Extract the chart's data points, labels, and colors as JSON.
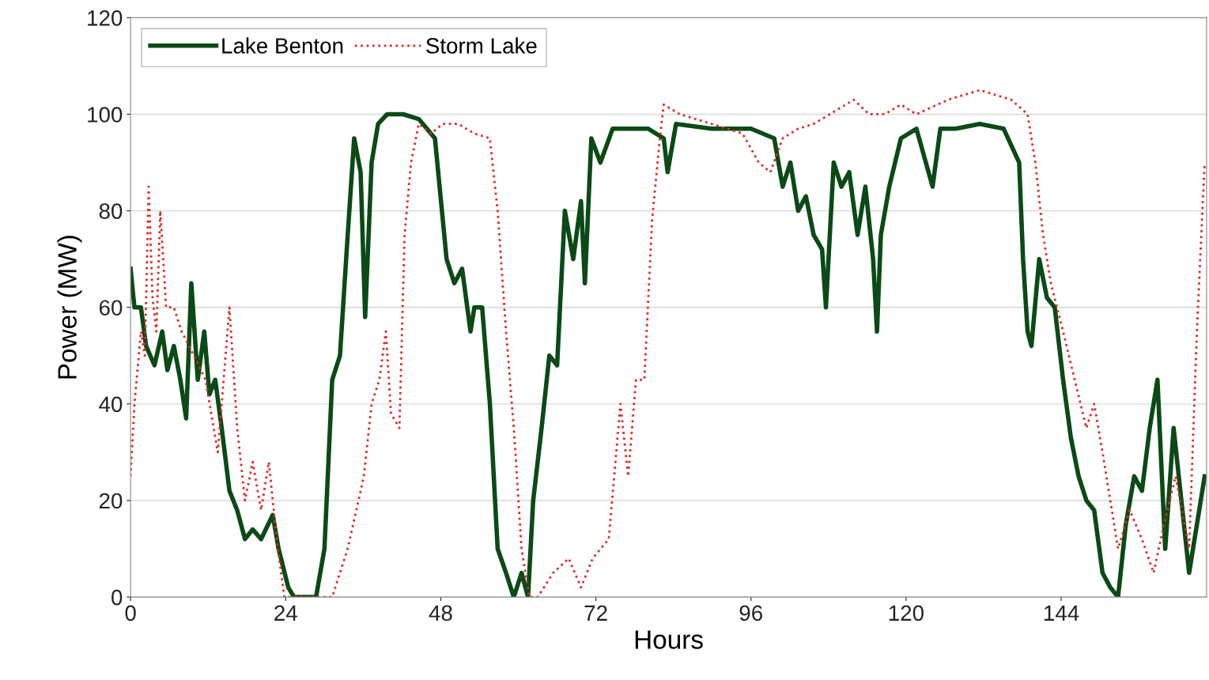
{
  "chart_data": {
    "type": "line",
    "xlabel": "Hours",
    "ylabel": "Power (MW)",
    "xlim": [
      0,
      166.5
    ],
    "xticks": [
      0,
      24,
      48,
      72,
      96,
      120,
      144
    ],
    "ylim": [
      0,
      120
    ],
    "yticks": [
      0,
      20,
      40,
      60,
      80,
      100,
      120
    ],
    "grid": "y",
    "legend": "top left",
    "series": [
      {
        "name": "Lake Benton",
        "color": "#0b4a16",
        "line_style": "solid",
        "x": [
          0,
          0.6,
          1.6,
          2.4,
          3.7,
          4.9,
          5.7,
          6.7,
          7.7,
          8.6,
          9.4,
          10.4,
          11.4,
          12.2,
          13.1,
          14.1,
          15.3,
          16.5,
          17.7,
          18.9,
          20.2,
          22.0,
          22.9,
          24.4,
          25.3,
          28.7,
          30.0,
          31.2,
          32.4,
          33.6,
          34.6,
          35.6,
          36.3,
          37.3,
          38.3,
          39.7,
          42.2,
          44.6,
          47.1,
          48.9,
          50.1,
          51.3,
          52.6,
          53.2,
          54.4,
          55.6,
          56.8,
          58.1,
          59.3,
          60.5,
          61.5,
          62.3,
          63.6,
          64.8,
          66.0,
          67.2,
          68.5,
          69.7,
          70.3,
          71.3,
          72.7,
          74.6,
          77.6,
          80.1,
          82.5,
          83.1,
          84.4,
          89.9,
          96.0,
          99.6,
          100.9,
          102.1,
          103.3,
          104.5,
          105.7,
          107.0,
          107.6,
          108.8,
          110.0,
          111.2,
          112.5,
          113.7,
          114.9,
          115.5,
          116.1,
          117.4,
          119.2,
          121.6,
          124.1,
          125.3,
          127.7,
          131.4,
          135.1,
          137.5,
          138.1,
          138.8,
          139.4,
          140.6,
          141.8,
          143.0,
          144.3,
          145.5,
          146.7,
          147.9,
          149.1,
          150.4,
          151.6,
          152.8,
          154.0,
          155.3,
          156.5,
          157.7,
          158.9,
          160.1,
          161.4,
          162.6,
          163.8,
          165.0,
          166.2
        ],
        "values": [
          68,
          60,
          60,
          52,
          48,
          55,
          47,
          52,
          45,
          37,
          65,
          45,
          55,
          42,
          45,
          35,
          22,
          18,
          12,
          14,
          12,
          17,
          10,
          2,
          0,
          0,
          10,
          45,
          50,
          75,
          95,
          88,
          58,
          90,
          98,
          100,
          100,
          99,
          95,
          70,
          65,
          68,
          55,
          60,
          60,
          40,
          10,
          5,
          0,
          5,
          0,
          20,
          35,
          50,
          48,
          80,
          70,
          82,
          65,
          95,
          90,
          97,
          97,
          97,
          95,
          88,
          98,
          97,
          97,
          95,
          85,
          90,
          80,
          83,
          75,
          72,
          60,
          90,
          85,
          88,
          75,
          85,
          70,
          55,
          75,
          85,
          95,
          97,
          85,
          97,
          97,
          98,
          97,
          90,
          70,
          55,
          52,
          70,
          62,
          60,
          45,
          33,
          25,
          20,
          18,
          5,
          2,
          0,
          15,
          25,
          22,
          35,
          45,
          10,
          35,
          20,
          5,
          15,
          25
        ]
      },
      {
        "name": "Storm Lake",
        "color": "#e02a2a",
        "line_style": "dotted",
        "x": [
          0,
          0.6,
          1.6,
          2.2,
          2.8,
          3.4,
          4.0,
          4.6,
          5.5,
          6.7,
          7.9,
          9.8,
          11.6,
          13.5,
          15.3,
          16.5,
          17.7,
          18.9,
          20.2,
          21.4,
          22.6,
          23.8,
          31.2,
          33.6,
          36.1,
          37.3,
          38.5,
          39.5,
          40.3,
          41.6,
          42.4,
          43.4,
          44.6,
          46.5,
          48.3,
          50.7,
          53.2,
          55.6,
          56.8,
          58.1,
          59.3,
          60.5,
          61.7,
          63.0,
          65.4,
          67.8,
          69.7,
          71.5,
          74.0,
          75.8,
          77.0,
          78.2,
          79.5,
          80.7,
          81.9,
          82.5,
          85.0,
          89.9,
          94.7,
          97.2,
          99.0,
          100.9,
          103.3,
          105.7,
          108.2,
          111.9,
          114.3,
          116.7,
          119.2,
          121.6,
          126.5,
          131.4,
          136.3,
          138.8,
          140.0,
          141.2,
          142.4,
          144.3,
          146.1,
          147.9,
          149.1,
          150.4,
          151.6,
          152.8,
          154.6,
          156.5,
          158.3,
          159.9,
          161.7,
          163.8,
          165.0,
          166.2
        ],
        "values": [
          25,
          40,
          55,
          50,
          85,
          62,
          55,
          80,
          60,
          60,
          55,
          50,
          45,
          30,
          60,
          35,
          20,
          28,
          18,
          28,
          12,
          0,
          0,
          10,
          25,
          40,
          45,
          55,
          38,
          35,
          75,
          90,
          98,
          96,
          98,
          98,
          96,
          95,
          80,
          55,
          35,
          10,
          0,
          0,
          5,
          8,
          2,
          8,
          12,
          40,
          25,
          45,
          45,
          78,
          95,
          102,
          100,
          98,
          96,
          90,
          88,
          95,
          97,
          98,
          100,
          103,
          100,
          100,
          102,
          100,
          103,
          105,
          103,
          100,
          90,
          75,
          65,
          55,
          45,
          35,
          40,
          30,
          20,
          10,
          18,
          12,
          5,
          15,
          25,
          10,
          55,
          90
        ]
      }
    ]
  }
}
